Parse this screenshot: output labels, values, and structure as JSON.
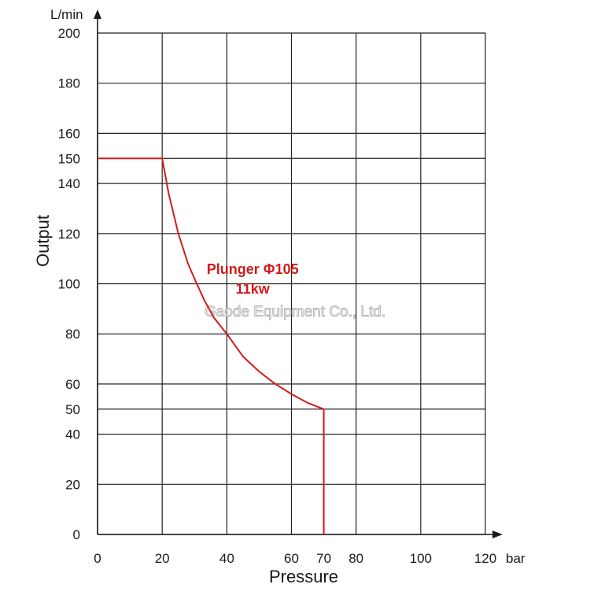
{
  "chart_data": {
    "type": "line",
    "xlabel": "Pressure",
    "ylabel": "Output",
    "x_unit": "bar",
    "y_unit": "L/min",
    "xlim": [
      0,
      120
    ],
    "ylim": [
      0,
      200
    ],
    "grid": true,
    "x_grid": [
      0,
      20,
      40,
      60,
      80,
      100,
      120
    ],
    "y_grid": [
      0,
      20,
      40,
      50,
      60,
      80,
      100,
      120,
      140,
      150,
      160,
      180,
      200
    ],
    "x_ticks": [
      0,
      20,
      40,
      60,
      70,
      80,
      100,
      120
    ],
    "y_ticks": [
      0,
      20,
      40,
      50,
      60,
      80,
      100,
      120,
      140,
      150,
      160,
      180,
      200
    ],
    "series": [
      {
        "name": "Plunger Φ105 11kw",
        "color": "#d41a1a",
        "x": [
          0,
          20,
          22,
          25,
          28,
          30,
          33,
          36,
          40,
          45,
          50,
          55,
          60,
          65,
          70,
          70
        ],
        "y": [
          150,
          150,
          136,
          120,
          108,
          102,
          93.5,
          86.5,
          80,
          71,
          65,
          60,
          56,
          52.5,
          50,
          0
        ]
      }
    ],
    "annotations": [
      {
        "text": "Plunger Φ105",
        "x": 48,
        "y": 104
      },
      {
        "text": "11kw",
        "x": 48,
        "y": 96
      }
    ],
    "watermark": "Gaode Equipment Co., Ltd."
  }
}
